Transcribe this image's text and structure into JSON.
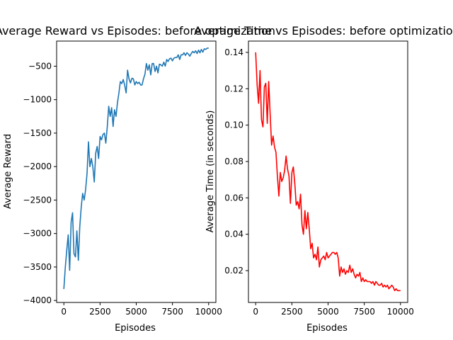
{
  "chart_data": [
    {
      "type": "line",
      "title": "Average Reward vs Episodes: before optimization",
      "xlabel": "Episodes",
      "ylabel": "Average Reward",
      "xlim": [
        -500,
        10500
      ],
      "ylim": [
        -4030,
        -125
      ],
      "xticks": [
        0,
        2500,
        5000,
        7500,
        10000
      ],
      "xtick_labels": [
        "0",
        "2500",
        "5000",
        "7500",
        "10000"
      ],
      "yticks": [
        -4000,
        -3500,
        -3000,
        -2500,
        -2000,
        -1500,
        -1000,
        -500
      ],
      "ytick_labels": [
        "−4000",
        "−3500",
        "−3000",
        "−2500",
        "−2000",
        "−1500",
        "−1000",
        "−500"
      ],
      "grid": false,
      "color": "#1f77b4",
      "series": [
        {
          "x": [
            0,
            100,
            200,
            300,
            400,
            500,
            600,
            700,
            800,
            900,
            1000,
            1100,
            1200,
            1300,
            1400,
            1500,
            1600,
            1700,
            1800,
            1900,
            2000,
            2100,
            2200,
            2300,
            2400,
            2500,
            2600,
            2700,
            2800,
            2900,
            3000,
            3100,
            3200,
            3300,
            3400,
            3500,
            3600,
            3700,
            3800,
            3900,
            4000,
            4100,
            4200,
            4300,
            4400,
            4500,
            4600,
            4700,
            4800,
            4900,
            5000,
            5100,
            5200,
            5300,
            5400,
            5500,
            5600,
            5700,
            5800,
            5900,
            6000,
            6100,
            6200,
            6300,
            6400,
            6500,
            6600,
            6700,
            6800,
            6900,
            7000,
            7100,
            7200,
            7300,
            7400,
            7500,
            7600,
            7700,
            7800,
            7900,
            8000,
            8100,
            8200,
            8300,
            8400,
            8500,
            8600,
            8700,
            8800,
            8900,
            9000,
            9100,
            9200,
            9300,
            9400,
            9500,
            9600,
            9700,
            9800,
            9900,
            10000
          ],
          "values": [
            -3830,
            -3500,
            -3250,
            -3020,
            -3550,
            -2830,
            -2690,
            -3300,
            -3350,
            -2960,
            -3400,
            -2900,
            -2600,
            -2400,
            -2500,
            -2350,
            -2100,
            -1630,
            -2000,
            -1880,
            -2000,
            -2230,
            -1800,
            -1700,
            -1880,
            -1550,
            -1600,
            -1520,
            -1500,
            -1650,
            -1400,
            -1100,
            -1250,
            -1120,
            -1400,
            -1150,
            -1250,
            -1050,
            -900,
            -730,
            -760,
            -700,
            -780,
            -900,
            -560,
            -690,
            -750,
            -680,
            -690,
            -780,
            -730,
            -760,
            -740,
            -780,
            -780,
            -690,
            -620,
            -460,
            -560,
            -480,
            -630,
            -460,
            -460,
            -580,
            -500,
            -600,
            -470,
            -480,
            -500,
            -440,
            -500,
            -400,
            -430,
            -390,
            -380,
            -420,
            -380,
            -370,
            -370,
            -330,
            -400,
            -330,
            -330,
            -300,
            -340,
            -300,
            -320,
            -350,
            -310,
            -280,
            -300,
            -270,
            -310,
            -260,
            -300,
            -250,
            -290,
            -240,
            -250,
            -230,
            -230
          ]
        }
      ]
    },
    {
      "type": "line",
      "title": "Average Time vs Episodes: before optimization",
      "xlabel": "Episodes",
      "ylabel": "Average Time (in seconds)",
      "xlim": [
        -500,
        10500
      ],
      "ylim": [
        0.0025,
        0.1462
      ],
      "xticks": [
        0,
        2500,
        5000,
        7500,
        10000
      ],
      "xtick_labels": [
        "0",
        "2500",
        "5000",
        "7500",
        "10000"
      ],
      "yticks": [
        0.02,
        0.04,
        0.06,
        0.08,
        0.1,
        0.12,
        0.14
      ],
      "ytick_labels": [
        "0.02",
        "0.04",
        "0.06",
        "0.08",
        "0.10",
        "0.12",
        "0.14"
      ],
      "grid": false,
      "color": "#ff0000",
      "series": [
        {
          "x": [
            0,
            100,
            200,
            300,
            400,
            500,
            600,
            700,
            800,
            900,
            1000,
            1100,
            1200,
            1300,
            1400,
            1500,
            1600,
            1700,
            1800,
            1900,
            2000,
            2100,
            2200,
            2300,
            2400,
            2500,
            2600,
            2700,
            2800,
            2900,
            3000,
            3100,
            3200,
            3300,
            3400,
            3500,
            3600,
            3700,
            3800,
            3900,
            4000,
            4100,
            4200,
            4300,
            4400,
            4500,
            4600,
            4700,
            4800,
            4900,
            5000,
            5100,
            5200,
            5300,
            5400,
            5500,
            5600,
            5700,
            5800,
            5900,
            6000,
            6100,
            6200,
            6300,
            6400,
            6500,
            6600,
            6700,
            6800,
            6900,
            7000,
            7100,
            7200,
            7300,
            7400,
            7500,
            7600,
            7700,
            7800,
            7900,
            8000,
            8100,
            8200,
            8300,
            8400,
            8500,
            8600,
            8700,
            8800,
            8900,
            9000,
            9100,
            9200,
            9300,
            9400,
            9500,
            9600,
            9700,
            9800,
            9900,
            10000
          ],
          "values": [
            0.14,
            0.122,
            0.112,
            0.13,
            0.103,
            0.099,
            0.121,
            0.123,
            0.101,
            0.124,
            0.106,
            0.089,
            0.094,
            0.088,
            0.085,
            0.072,
            0.061,
            0.074,
            0.069,
            0.071,
            0.075,
            0.083,
            0.076,
            0.072,
            0.057,
            0.074,
            0.077,
            0.068,
            0.056,
            0.058,
            0.054,
            0.062,
            0.045,
            0.04,
            0.053,
            0.043,
            0.052,
            0.043,
            0.032,
            0.035,
            0.027,
            0.029,
            0.026,
            0.033,
            0.022,
            0.026,
            0.027,
            0.028,
            0.026,
            0.03,
            0.027,
            0.028,
            0.029,
            0.03,
            0.03,
            0.029,
            0.03,
            0.027,
            0.017,
            0.022,
            0.019,
            0.021,
            0.018,
            0.02,
            0.019,
            0.023,
            0.019,
            0.021,
            0.018,
            0.016,
            0.018,
            0.017,
            0.019,
            0.014,
            0.016,
            0.014,
            0.015,
            0.014,
            0.014,
            0.014,
            0.013,
            0.014,
            0.012,
            0.014,
            0.013,
            0.012,
            0.012,
            0.013,
            0.011,
            0.012,
            0.011,
            0.012,
            0.01,
            0.011,
            0.012,
            0.011,
            0.009,
            0.01,
            0.009,
            0.009,
            0.009
          ]
        }
      ]
    }
  ]
}
